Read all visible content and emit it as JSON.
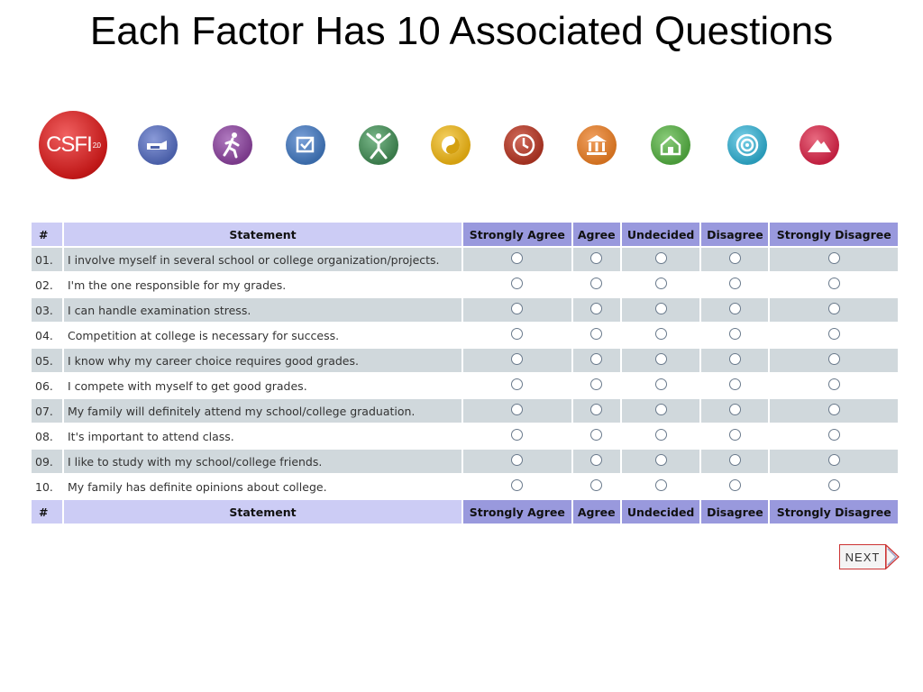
{
  "slide_title": "Each Factor Has 10 Associated Questions",
  "logo": {
    "text": "CSFI",
    "superscript": "2.0"
  },
  "factor_icons": [
    {
      "name": "pointing-hand-icon",
      "color": "#4a5fa8"
    },
    {
      "name": "runner-icon",
      "color": "#7a3a8a"
    },
    {
      "name": "checkbox-icon",
      "color": "#3a6aa8"
    },
    {
      "name": "person-arms-up-icon",
      "color": "#3a7a4a"
    },
    {
      "name": "yin-yang-icon",
      "color": "#d4a010"
    },
    {
      "name": "clock-icon",
      "color": "#a03020"
    },
    {
      "name": "building-icon",
      "color": "#d07020"
    },
    {
      "name": "house-icon",
      "color": "#4a9a3a"
    },
    {
      "name": "target-icon",
      "color": "#2a9ab8"
    },
    {
      "name": "mountain-icon",
      "color": "#c02040"
    }
  ],
  "table": {
    "headers": {
      "num": "#",
      "statement": "Statement",
      "options": [
        "Strongly Agree",
        "Agree",
        "Undecided",
        "Disagree",
        "Strongly Disagree"
      ]
    },
    "rows": [
      {
        "num": "01.",
        "statement": "I involve myself in several school or college organization/projects."
      },
      {
        "num": "02.",
        "statement": "I'm the one responsible for my grades."
      },
      {
        "num": "03.",
        "statement": "I can handle examination stress."
      },
      {
        "num": "04.",
        "statement": "Competition at college is necessary for success."
      },
      {
        "num": "05.",
        "statement": "I know why my career choice requires good grades."
      },
      {
        "num": "06.",
        "statement": "I compete with myself to get good grades."
      },
      {
        "num": "07.",
        "statement": "My family will definitely attend my school/college graduation."
      },
      {
        "num": "08.",
        "statement": "It's important to attend class."
      },
      {
        "num": "09.",
        "statement": "I like to study with my school/college friends."
      },
      {
        "num": "10.",
        "statement": "My family has definite opinions about college."
      }
    ]
  },
  "next_button": {
    "label": "NEXT"
  }
}
